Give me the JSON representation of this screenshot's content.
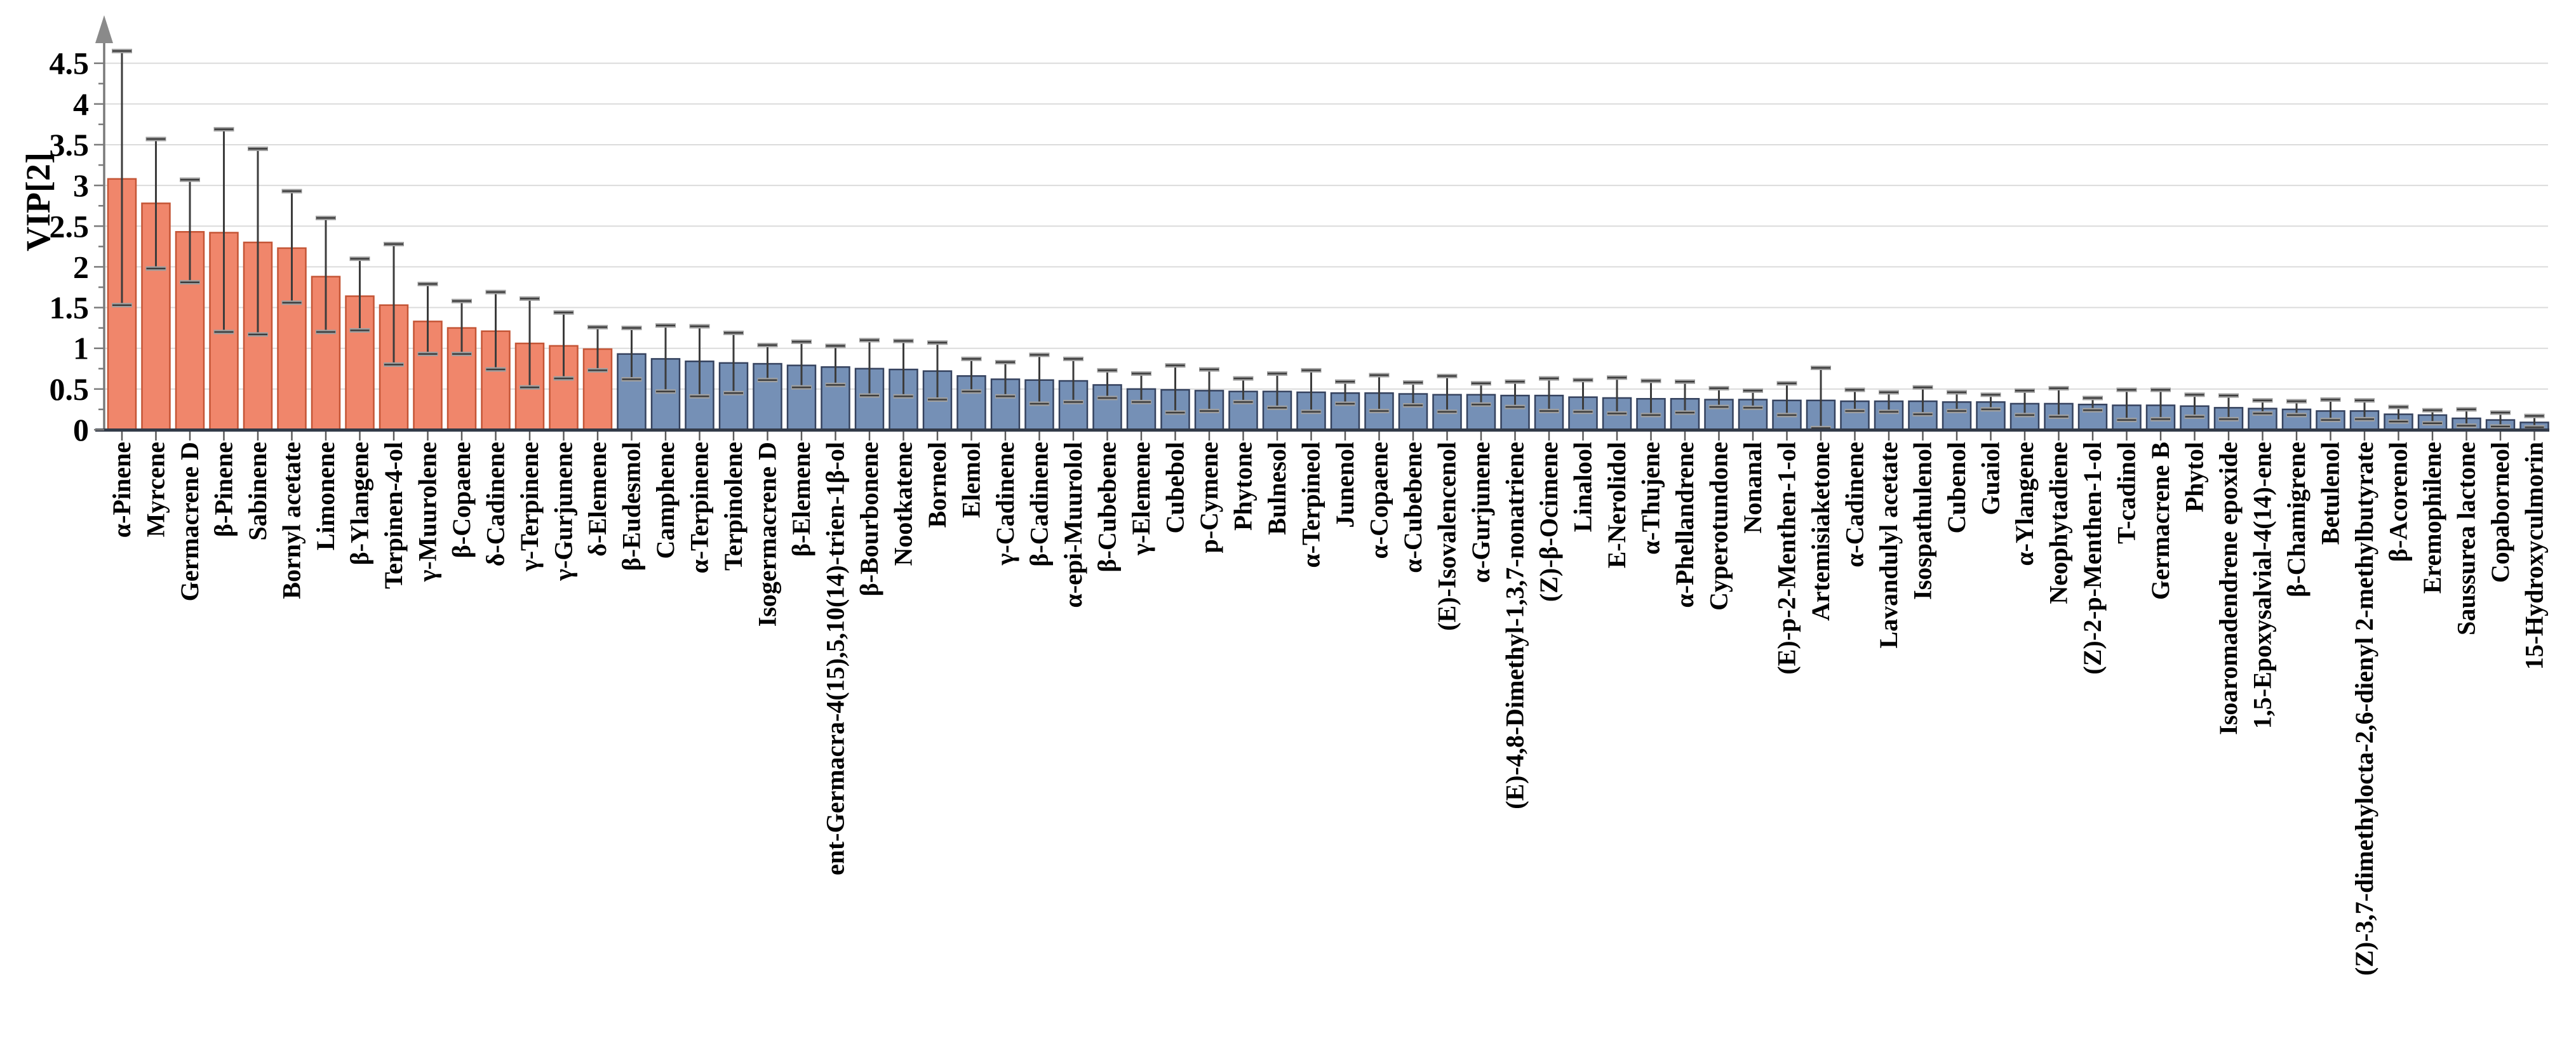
{
  "chart_data": {
    "type": "bar",
    "title": "",
    "xlabel": "",
    "ylabel": "VIP[2]",
    "ylim": [
      0,
      4.75
    ],
    "ytick_labels": [
      "0",
      "0.5",
      "1",
      "1.5",
      "2",
      "2.5",
      "3",
      "3.5",
      "4",
      "4.5"
    ],
    "ytick_step": 0.5,
    "ytick_minor_step": 0.25,
    "grid": "horizontal-light",
    "legend": "none",
    "error_bars": true,
    "highlight_count": 15,
    "colors": {
      "bar_high_fill": "#F0866B",
      "bar_high_stroke": "#C45536",
      "bar_low_fill": "#7590B6",
      "bar_low_stroke": "#35425E",
      "grid": "#DBDBDB",
      "axis_x": "#333B49",
      "axis_y": "#7A7A7A",
      "tick": "#5A5A5A",
      "error_line": "#3C3C3C",
      "error_cap_light": "#A0A0A0",
      "label_text": "#000000"
    },
    "bars": [
      {
        "label": "α-Pinene",
        "value": 3.08,
        "lo": 1.53,
        "hi": 4.65
      },
      {
        "label": "Myrcene",
        "value": 2.78,
        "lo": 1.98,
        "hi": 3.57
      },
      {
        "label": "Germacrene D",
        "value": 2.43,
        "lo": 1.81,
        "hi": 3.07
      },
      {
        "label": "β-Pinene",
        "value": 2.42,
        "lo": 1.2,
        "hi": 3.69
      },
      {
        "label": "Sabinene",
        "value": 2.3,
        "lo": 1.17,
        "hi": 3.45
      },
      {
        "label": "Bornyl acetate",
        "value": 2.23,
        "lo": 1.56,
        "hi": 2.93
      },
      {
        "label": "Limonene",
        "value": 1.88,
        "lo": 1.2,
        "hi": 2.6
      },
      {
        "label": "β-Ylangene",
        "value": 1.64,
        "lo": 1.22,
        "hi": 2.1
      },
      {
        "label": "Terpinen-4-ol",
        "value": 1.53,
        "lo": 0.8,
        "hi": 2.28
      },
      {
        "label": "γ-Muurolene",
        "value": 1.33,
        "lo": 0.93,
        "hi": 1.79
      },
      {
        "label": "β-Copaene",
        "value": 1.25,
        "lo": 0.93,
        "hi": 1.58
      },
      {
        "label": "δ-Cadinene",
        "value": 1.21,
        "lo": 0.74,
        "hi": 1.69
      },
      {
        "label": "γ-Terpinene",
        "value": 1.06,
        "lo": 0.52,
        "hi": 1.61
      },
      {
        "label": "γ-Gurjunene",
        "value": 1.03,
        "lo": 0.63,
        "hi": 1.44
      },
      {
        "label": "δ-Elemene",
        "value": 0.99,
        "lo": 0.73,
        "hi": 1.26
      },
      {
        "label": "β-Eudesmol",
        "value": 0.93,
        "lo": 0.62,
        "hi": 1.25
      },
      {
        "label": "Camphene",
        "value": 0.87,
        "lo": 0.47,
        "hi": 1.28
      },
      {
        "label": "α-Terpinene",
        "value": 0.84,
        "lo": 0.41,
        "hi": 1.27
      },
      {
        "label": "Terpinolene",
        "value": 0.82,
        "lo": 0.45,
        "hi": 1.19
      },
      {
        "label": "Isogermacrene D",
        "value": 0.81,
        "lo": 0.61,
        "hi": 1.04
      },
      {
        "label": "β-Elemene",
        "value": 0.79,
        "lo": 0.52,
        "hi": 1.08
      },
      {
        "label": "ent-Germacra-4(15),5,10(14)-trien-1β-ol",
        "value": 0.77,
        "lo": 0.55,
        "hi": 1.03
      },
      {
        "label": "β-Bourbonene",
        "value": 0.75,
        "lo": 0.42,
        "hi": 1.1
      },
      {
        "label": "Nootkatene",
        "value": 0.74,
        "lo": 0.41,
        "hi": 1.09
      },
      {
        "label": "Borneol",
        "value": 0.72,
        "lo": 0.37,
        "hi": 1.07
      },
      {
        "label": "Elemol",
        "value": 0.66,
        "lo": 0.47,
        "hi": 0.87
      },
      {
        "label": "γ-Cadinene",
        "value": 0.62,
        "lo": 0.41,
        "hi": 0.83
      },
      {
        "label": "β-Cadinene",
        "value": 0.61,
        "lo": 0.32,
        "hi": 0.92
      },
      {
        "label": "α-epi-Muurolol",
        "value": 0.6,
        "lo": 0.34,
        "hi": 0.87
      },
      {
        "label": "β-Cubebene",
        "value": 0.55,
        "lo": 0.39,
        "hi": 0.73
      },
      {
        "label": "γ-Elemene",
        "value": 0.5,
        "lo": 0.34,
        "hi": 0.69
      },
      {
        "label": "Cubebol",
        "value": 0.49,
        "lo": 0.21,
        "hi": 0.79
      },
      {
        "label": "p-Cymene",
        "value": 0.48,
        "lo": 0.23,
        "hi": 0.74
      },
      {
        "label": "Phytone",
        "value": 0.47,
        "lo": 0.34,
        "hi": 0.63
      },
      {
        "label": "Bulnesol",
        "value": 0.47,
        "lo": 0.27,
        "hi": 0.69
      },
      {
        "label": "α-Terpineol",
        "value": 0.46,
        "lo": 0.22,
        "hi": 0.73
      },
      {
        "label": "Junenol",
        "value": 0.45,
        "lo": 0.32,
        "hi": 0.59
      },
      {
        "label": "α-Copaene",
        "value": 0.45,
        "lo": 0.23,
        "hi": 0.67
      },
      {
        "label": "α-Cubebene",
        "value": 0.44,
        "lo": 0.3,
        "hi": 0.58
      },
      {
        "label": "(E)-Isovalencenol",
        "value": 0.43,
        "lo": 0.22,
        "hi": 0.66
      },
      {
        "label": "α-Gurjunene",
        "value": 0.43,
        "lo": 0.31,
        "hi": 0.57
      },
      {
        "label": "(E)-4,8-Dimethyl-1,3,7-nonatriene",
        "value": 0.42,
        "lo": 0.28,
        "hi": 0.59
      },
      {
        "label": "(Z)-β-Ocimene",
        "value": 0.42,
        "lo": 0.23,
        "hi": 0.63
      },
      {
        "label": "Linalool",
        "value": 0.4,
        "lo": 0.22,
        "hi": 0.61
      },
      {
        "label": "E-Nerolidol",
        "value": 0.39,
        "lo": 0.2,
        "hi": 0.64
      },
      {
        "label": "α-Thujene",
        "value": 0.38,
        "lo": 0.18,
        "hi": 0.6
      },
      {
        "label": "α-Phellandrene",
        "value": 0.38,
        "lo": 0.21,
        "hi": 0.59
      },
      {
        "label": "Cyperotundone",
        "value": 0.37,
        "lo": 0.28,
        "hi": 0.51
      },
      {
        "label": "Nonanal",
        "value": 0.37,
        "lo": 0.27,
        "hi": 0.48
      },
      {
        "label": "(E)-p-2-Menthen-1-ol",
        "value": 0.36,
        "lo": 0.18,
        "hi": 0.57
      },
      {
        "label": "Artemisiaketone",
        "value": 0.36,
        "lo": 0.02,
        "hi": 0.76
      },
      {
        "label": "α-Cadinene",
        "value": 0.35,
        "lo": 0.23,
        "hi": 0.49
      },
      {
        "label": "Lavandulyl acetate",
        "value": 0.35,
        "lo": 0.22,
        "hi": 0.46
      },
      {
        "label": "Isospathulenol",
        "value": 0.35,
        "lo": 0.19,
        "hi": 0.52
      },
      {
        "label": "Cubenol",
        "value": 0.34,
        "lo": 0.23,
        "hi": 0.46
      },
      {
        "label": "Guaiol",
        "value": 0.34,
        "lo": 0.25,
        "hi": 0.43
      },
      {
        "label": "α-Ylangene",
        "value": 0.32,
        "lo": 0.18,
        "hi": 0.48
      },
      {
        "label": "Neophytadiene",
        "value": 0.32,
        "lo": 0.16,
        "hi": 0.51
      },
      {
        "label": "(Z)-2-p-Menthen-1-ol",
        "value": 0.31,
        "lo": 0.24,
        "hi": 0.39
      },
      {
        "label": "T-cadinol",
        "value": 0.3,
        "lo": 0.12,
        "hi": 0.49
      },
      {
        "label": "Germacrene B",
        "value": 0.3,
        "lo": 0.13,
        "hi": 0.49
      },
      {
        "label": "Phytol",
        "value": 0.29,
        "lo": 0.16,
        "hi": 0.43
      },
      {
        "label": "Isoaromadendrene epoxide",
        "value": 0.27,
        "lo": 0.13,
        "hi": 0.42
      },
      {
        "label": "1,5-Epoxysalvial-4(14)-ene",
        "value": 0.26,
        "lo": 0.2,
        "hi": 0.36
      },
      {
        "label": "β-Chamigrene",
        "value": 0.25,
        "lo": 0.18,
        "hi": 0.35
      },
      {
        "label": "Betulenol",
        "value": 0.23,
        "lo": 0.12,
        "hi": 0.37
      },
      {
        "label": "(Z)-3,7-dimethylocta-2,6-dienyl 2-methylbutyrate",
        "value": 0.23,
        "lo": 0.13,
        "hi": 0.36
      },
      {
        "label": "β-Acorenol",
        "value": 0.19,
        "lo": 0.1,
        "hi": 0.28
      },
      {
        "label": "Eremophilene",
        "value": 0.18,
        "lo": 0.08,
        "hi": 0.24
      },
      {
        "label": "Saussurea lactone",
        "value": 0.14,
        "lo": 0.05,
        "hi": 0.25
      },
      {
        "label": "Copaborneol",
        "value": 0.12,
        "lo": 0.04,
        "hi": 0.21
      },
      {
        "label": "15-Hydroxyculmorin",
        "value": 0.09,
        "lo": 0.03,
        "hi": 0.17
      }
    ]
  }
}
